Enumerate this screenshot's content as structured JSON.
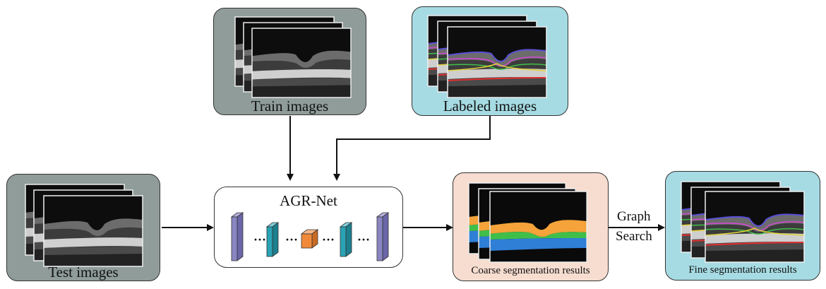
{
  "panels": {
    "train": {
      "label": "Train images"
    },
    "labeled": {
      "label": "Labeled images"
    },
    "test": {
      "label": "Test images"
    },
    "network": {
      "label": "AGR-Net"
    },
    "coarse": {
      "label": "Coarse segmentation results"
    },
    "fine": {
      "label": "Fine segmentation results"
    }
  },
  "arrow_labels": {
    "graph": "Graph",
    "search": "Search"
  },
  "colors": {
    "gray_panel": "#8f9c9a",
    "cyan_panel": "#a6dbe3",
    "peach_panel": "#f6ddd0",
    "layer_purple": "#8a86c2",
    "layer_teal": "#2aa3b5",
    "layer_orange": "#f08a3a",
    "seg_orange": "#f5a33a",
    "seg_green": "#3fbf4a",
    "seg_blue": "#2f7fd6"
  }
}
